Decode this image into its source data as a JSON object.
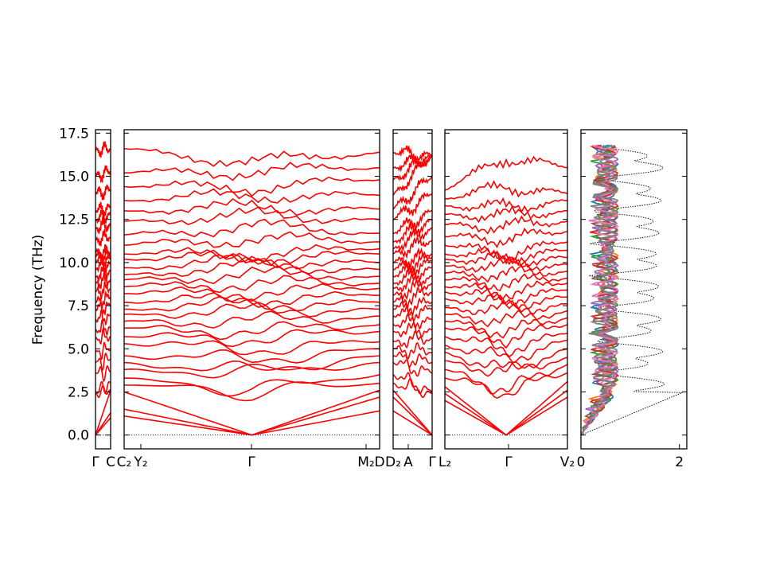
{
  "chart_data": {
    "type": "line",
    "ylabel": "Frequency (THz)",
    "ylim": [
      -0.8,
      17.7
    ],
    "yticks": [
      "0.0",
      "2.5",
      "5.0",
      "7.5",
      "10.0",
      "12.5",
      "15.0",
      "17.5"
    ],
    "ytick_values": [
      0,
      2.5,
      5,
      7.5,
      10,
      12.5,
      15,
      17.5
    ],
    "band_color": "#ff0000",
    "zero_line_color": "#0000cc",
    "panels": [
      {
        "path_labels": [
          "Γ",
          "C"
        ],
        "start_freqs": [
          0,
          0,
          0,
          2.4,
          2.5,
          3.6,
          4.2,
          4.8,
          5.6,
          6.1,
          6.7,
          7.3,
          7.7,
          8.3,
          8.8,
          9.2,
          9.7,
          10.1,
          10.4,
          10.6,
          11.3,
          12.0,
          12.5,
          13.0,
          14.0,
          15.0,
          16.5
        ],
        "end_freqs": [
          1.0,
          1.3,
          2.6,
          2.6,
          3.0,
          3.7,
          4.4,
          5.0,
          5.7,
          6.2,
          6.9,
          7.5,
          8.0,
          8.5,
          9.0,
          9.5,
          9.9,
          10.2,
          10.4,
          10.6,
          11.5,
          12.2,
          12.8,
          13.2,
          14.2,
          15.3,
          16.6
        ]
      },
      {
        "path_labels": [
          "C₂",
          "Y₂",
          "Γ",
          "M₂",
          "D"
        ],
        "start_freqs": [
          1.1,
          1.5,
          2.5,
          2.9,
          3.3,
          3.8,
          4.2,
          4.6,
          5.3,
          5.7,
          6.2,
          6.6,
          7.0,
          7.3,
          7.7,
          8.2,
          8.6,
          9.0,
          9.3,
          9.7,
          10.2,
          10.5,
          11.0,
          11.6,
          12.4,
          13.0,
          13.6,
          14.4,
          15.2,
          16.6
        ],
        "mid_freqs": [
          0,
          0,
          0,
          2.5,
          2.6,
          3.6,
          3.7,
          4.4,
          5.0,
          5.6,
          6.0,
          6.6,
          7.2,
          7.6,
          7.9,
          8.3,
          8.8,
          9.3,
          9.8,
          10.1,
          10.3,
          10.5,
          11.4,
          12.1,
          12.7,
          13.2,
          13.9,
          14.4,
          15.3,
          15.8
        ],
        "end_freqs": [
          1.4,
          2.2,
          2.6,
          3.0,
          3.5,
          4.2,
          4.6,
          5.0,
          5.4,
          6.0,
          6.4,
          6.9,
          7.3,
          7.7,
          8.1,
          8.5,
          8.8,
          9.2,
          9.6,
          10.0,
          10.5,
          10.8,
          11.2,
          11.7,
          12.5,
          13.1,
          13.9,
          14.8,
          15.5,
          16.4
        ]
      },
      {
        "path_labels": [
          "D₂",
          "A",
          "Γ"
        ],
        "start_freqs": [
          1.4,
          2.2,
          2.6,
          3.0,
          3.5,
          4.2,
          4.6,
          5.0,
          5.4,
          6.0,
          6.4,
          6.9,
          7.3,
          7.7,
          8.1,
          8.5,
          8.8,
          9.2,
          9.6,
          10.0,
          10.5,
          10.8,
          11.2,
          11.7,
          12.5,
          13.1,
          13.9,
          14.8,
          15.5,
          16.4
        ],
        "end_freqs": [
          0,
          0,
          0,
          2.4,
          2.5,
          3.6,
          4.2,
          4.8,
          5.6,
          6.1,
          6.7,
          7.3,
          7.7,
          8.3,
          8.8,
          9.2,
          9.7,
          10.1,
          10.3,
          10.5,
          11.3,
          12.0,
          12.5,
          13.0,
          14.0,
          15.0,
          16.2,
          16.2,
          16.2,
          16.2
        ]
      },
      {
        "path_labels": [
          "L₂",
          "Γ",
          "V₂"
        ],
        "start_freqs": [
          2.0,
          2.4,
          2.8,
          3.3,
          3.8,
          4.3,
          4.8,
          5.2,
          5.7,
          6.2,
          6.6,
          7.0,
          7.4,
          7.9,
          8.3,
          8.6,
          9.0,
          9.4,
          9.8,
          10.2,
          10.5,
          11.0,
          11.5,
          12.2,
          12.8,
          13.3,
          13.7,
          14.2
        ],
        "mid_freqs": [
          0,
          0,
          0,
          2.5,
          2.6,
          3.6,
          3.7,
          4.4,
          5.0,
          5.6,
          6.0,
          6.6,
          7.2,
          7.6,
          7.9,
          8.3,
          8.8,
          9.3,
          9.8,
          10.1,
          10.3,
          10.5,
          11.4,
          12.1,
          12.7,
          13.2,
          14.4,
          16.1
        ],
        "end_freqs": [
          2.2,
          2.6,
          3.1,
          3.6,
          4.1,
          4.5,
          5.0,
          5.5,
          5.9,
          6.4,
          6.8,
          7.2,
          7.6,
          8.0,
          8.4,
          8.8,
          9.1,
          9.5,
          9.9,
          10.3,
          10.7,
          11.2,
          11.8,
          12.4,
          13.0,
          13.6,
          14.0,
          15.5
        ]
      }
    ],
    "dos": {
      "xlim": [
        0,
        2.15
      ],
      "xticks": [
        "0",
        "2"
      ],
      "xtick_values": [
        0,
        2
      ],
      "series_colors": [
        "#1f77b4",
        "#ff7f0e",
        "#2ca02c",
        "#d62728",
        "#9467bd",
        "#8c564b",
        "#e377c2",
        "#7f7f7f"
      ],
      "total_color": "#000000"
    }
  }
}
